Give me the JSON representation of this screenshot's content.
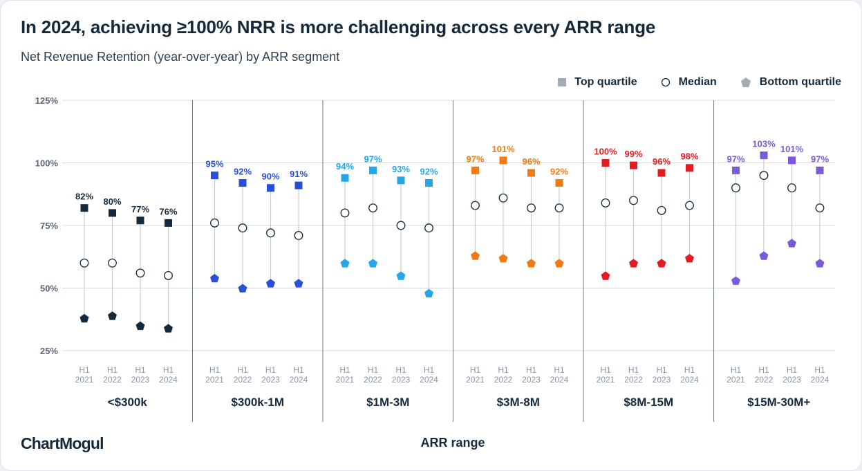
{
  "title": "In 2024, achieving ≥100% NRR is more challenging across every ARR range",
  "subtitle": "Net Revenue Retention (year-over-year) by ARR segment",
  "logo": "ChartMogul",
  "chart_data": {
    "type": "scatter",
    "title": "In 2024, achieving ≥100% NRR is more challenging across every ARR range",
    "subtitle": "Net Revenue Retention (year-over-year) by ARR segment",
    "xlabel": "ARR range",
    "ylabel": "",
    "yticks": [
      "125%",
      "100%",
      "75%",
      "50%",
      "25%"
    ],
    "ylim": [
      25,
      125
    ],
    "grid": true,
    "legend_position": "top-right",
    "legend": [
      "Top quartile",
      "Median",
      "Bottom quartile"
    ],
    "period_labels": [
      [
        "H1",
        "2021"
      ],
      [
        "H1",
        "2022"
      ],
      [
        "H1",
        "2023"
      ],
      [
        "H1",
        "2024"
      ]
    ],
    "segments": [
      {
        "name": "<$300k",
        "color": "#14293b",
        "top": [
          82,
          80,
          77,
          76
        ],
        "top_labels": [
          "82%",
          "80%",
          "77%",
          "76%"
        ],
        "median": [
          60,
          60,
          56,
          55
        ],
        "bottom": [
          38,
          39,
          35,
          34
        ]
      },
      {
        "name": "$300k-1M",
        "color": "#2a4fd6",
        "top": [
          95,
          92,
          90,
          91
        ],
        "top_labels": [
          "95%",
          "92%",
          "90%",
          "91%"
        ],
        "median": [
          76,
          74,
          72,
          71
        ],
        "bottom": [
          54,
          50,
          52,
          52
        ]
      },
      {
        "name": "$1M-3M",
        "color": "#25a6e9",
        "top": [
          94,
          97,
          93,
          92
        ],
        "top_labels": [
          "94%",
          "97%",
          "93%",
          "92%"
        ],
        "median": [
          80,
          82,
          75,
          74
        ],
        "bottom": [
          60,
          60,
          55,
          48
        ]
      },
      {
        "name": "$3M-8M",
        "color": "#f07b16",
        "top": [
          97,
          101,
          96,
          92
        ],
        "top_labels": [
          "97%",
          "101%",
          "96%",
          "92%"
        ],
        "median": [
          83,
          86,
          82,
          82
        ],
        "bottom": [
          63,
          62,
          60,
          60
        ]
      },
      {
        "name": "$8M-15M",
        "color": "#e31b23",
        "top": [
          100,
          99,
          96,
          98
        ],
        "top_labels": [
          "100%",
          "99%",
          "96%",
          "98%"
        ],
        "median": [
          84,
          85,
          81,
          83
        ],
        "bottom": [
          55,
          60,
          60,
          62
        ]
      },
      {
        "name": "$15M-30M+",
        "color": "#7a5ad9",
        "top": [
          97,
          103,
          101,
          97
        ],
        "top_labels": [
          "97%",
          "103%",
          "101%",
          "97%"
        ],
        "median": [
          90,
          95,
          90,
          82
        ],
        "bottom": [
          53,
          63,
          68,
          60
        ]
      }
    ]
  },
  "colors": {
    "legend_marker": "#a3abb7",
    "text_dark": "#14293b",
    "grid": "#d6d9e0",
    "stem": "#c7ccd6",
    "divider": "#6b7a8c"
  }
}
